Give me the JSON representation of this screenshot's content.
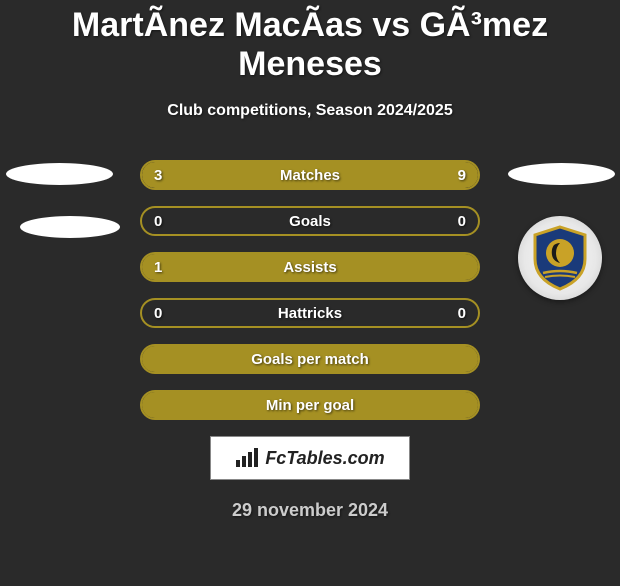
{
  "title": "MartÃ­nez MacÃ­as vs GÃ³mez Meneses",
  "subtitle": "Club competitions, Season 2024/2025",
  "date": "29 november 2024",
  "brand": "FcTables.com",
  "colors": {
    "background": "#2a2a2a",
    "accent": "#a59023",
    "white": "#ffffff",
    "text_shadow": "rgba(0,0,0,0.6)"
  },
  "decorations": {
    "left_ellipses": 2,
    "right_ellipses": 1,
    "right_logo": true
  },
  "stats": [
    {
      "label": "Matches",
      "left_value": "3",
      "right_value": "9",
      "left_fill_pct": 25,
      "right_fill_pct": 75,
      "fill_color": "#a59023",
      "border_color": "#a59023"
    },
    {
      "label": "Goals",
      "left_value": "0",
      "right_value": "0",
      "left_fill_pct": 0,
      "right_fill_pct": 0,
      "fill_color": "#a59023",
      "border_color": "#a59023"
    },
    {
      "label": "Assists",
      "left_value": "1",
      "right_value": "",
      "left_fill_pct": 100,
      "right_fill_pct": 0,
      "fill_color": "#a59023",
      "border_color": "#a59023"
    },
    {
      "label": "Hattricks",
      "left_value": "0",
      "right_value": "0",
      "left_fill_pct": 0,
      "right_fill_pct": 0,
      "fill_color": "#a59023",
      "border_color": "#a59023"
    },
    {
      "label": "Goals per match",
      "left_value": "",
      "right_value": "",
      "left_fill_pct": 100,
      "right_fill_pct": 0,
      "fill_color": "#a59023",
      "border_color": "#a59023"
    },
    {
      "label": "Min per goal",
      "left_value": "",
      "right_value": "",
      "left_fill_pct": 100,
      "right_fill_pct": 0,
      "fill_color": "#a59023",
      "border_color": "#a59023"
    }
  ]
}
